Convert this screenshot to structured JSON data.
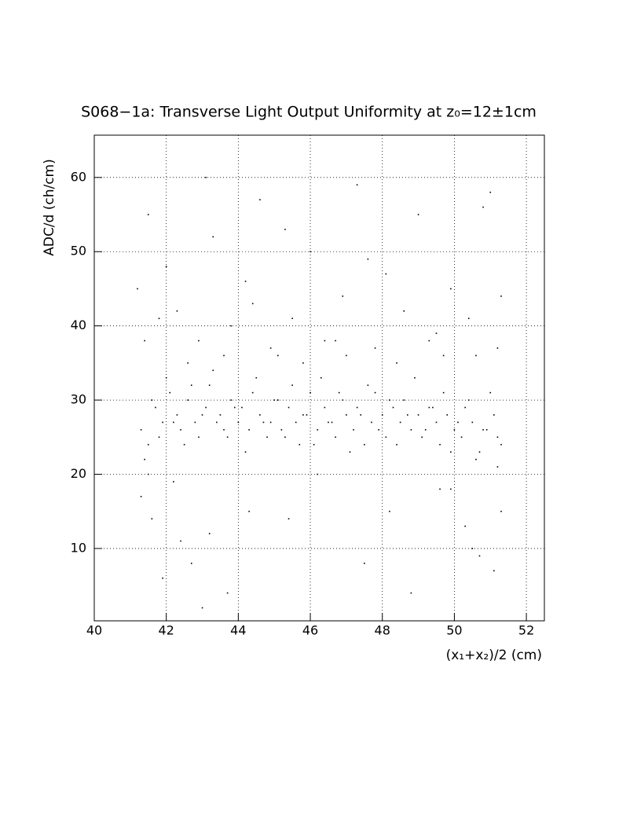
{
  "chart_data": {
    "type": "scatter",
    "title": "S068−1a: Transverse Light Output Uniformity at z₀=12±1cm",
    "x_label": "(x₁+x₂)/2 (cm)",
    "y_label": "ADC/d (ch/cm)",
    "xlim": [
      40,
      52.5
    ],
    "ylim": [
      0.25,
      65.7
    ],
    "xticks": [
      40,
      42,
      44,
      46,
      48,
      50,
      52
    ],
    "yticks": [
      10,
      20,
      30,
      40,
      50,
      60
    ],
    "grid": true,
    "color": "#000000",
    "x": [
      41.3,
      41.5,
      41.7,
      41.9,
      42.1,
      42.3,
      42.4,
      42.6,
      42.8,
      42.9,
      43.1,
      43.2,
      43.4,
      43.5,
      43.7,
      43.8,
      44.0,
      44.1,
      44.3,
      44.4,
      44.6,
      44.8,
      44.9,
      45.1,
      45.2,
      45.4,
      45.6,
      45.7,
      45.9,
      46.0,
      46.2,
      46.4,
      46.5,
      46.7,
      46.9,
      47.0,
      47.2,
      47.3,
      47.5,
      47.7,
      47.8,
      48.0,
      48.1,
      48.3,
      48.5,
      48.6,
      48.8,
      49.0,
      49.1,
      49.3,
      49.5,
      49.6,
      49.8,
      50.0,
      50.2,
      50.3,
      50.5,
      50.7,
      50.9,
      51.1,
      51.3,
      41.4,
      41.6,
      41.8,
      42.0,
      42.2,
      42.5,
      42.7,
      43.0,
      43.3,
      43.6,
      43.9,
      44.2,
      44.5,
      44.7,
      45.0,
      45.3,
      45.5,
      45.8,
      46.1,
      46.3,
      46.6,
      46.8,
      47.1,
      47.4,
      47.6,
      47.9,
      48.2,
      48.4,
      48.7,
      48.9,
      49.2,
      49.4,
      49.7,
      49.9,
      50.1,
      50.4,
      50.6,
      50.8,
      51.0,
      51.2,
      41.2,
      41.5,
      42.0,
      42.3,
      42.9,
      43.3,
      43.8,
      44.2,
      44.6,
      45.1,
      45.5,
      46.0,
      46.4,
      46.9,
      47.3,
      47.8,
      48.1,
      48.6,
      49.0,
      49.5,
      49.9,
      50.4,
      50.8,
      51.2,
      41.4,
      42.6,
      43.6,
      44.9,
      45.8,
      47.0,
      48.4,
      49.3,
      50.6,
      51.3,
      41.8,
      43.1,
      44.4,
      45.3,
      46.7,
      47.6,
      49.7,
      51.0,
      41.3,
      41.6,
      41.9,
      42.2,
      42.7,
      43.2,
      43.7,
      44.3,
      45.4,
      46.2,
      47.5,
      48.2,
      48.8,
      49.6,
      50.3,
      50.7,
      51.1,
      51.3,
      41.5,
      42.4,
      43.0,
      49.9,
      50.5,
      51.2
    ],
    "y": [
      26,
      24,
      29,
      27,
      31,
      28,
      26,
      30,
      27,
      25,
      29,
      32,
      27,
      28,
      25,
      30,
      27,
      29,
      26,
      31,
      28,
      25,
      27,
      30,
      26,
      29,
      27,
      24,
      28,
      31,
      26,
      29,
      27,
      25,
      30,
      28,
      26,
      29,
      24,
      27,
      31,
      28,
      25,
      29,
      27,
      30,
      26,
      28,
      25,
      29,
      27,
      24,
      28,
      26,
      25,
      29,
      27,
      23,
      26,
      28,
      24,
      22,
      30,
      25,
      33,
      27,
      24,
      32,
      28,
      34,
      26,
      29,
      23,
      33,
      27,
      30,
      25,
      32,
      28,
      24,
      33,
      27,
      31,
      23,
      28,
      32,
      26,
      30,
      24,
      28,
      33,
      26,
      29,
      31,
      23,
      27,
      30,
      22,
      26,
      31,
      25,
      45,
      55,
      48,
      42,
      38,
      52,
      40,
      46,
      57,
      36,
      41,
      50,
      38,
      44,
      59,
      37,
      47,
      42,
      55,
      39,
      45,
      41,
      56,
      37,
      38,
      35,
      36,
      37,
      35,
      36,
      35,
      38,
      36,
      44,
      41,
      60,
      43,
      53,
      38,
      49,
      36,
      58,
      17,
      14,
      6,
      19,
      8,
      12,
      4,
      15,
      14,
      20,
      8,
      15,
      4,
      18,
      13,
      9,
      7,
      15,
      20,
      11,
      2,
      18,
      10,
      21
    ]
  }
}
